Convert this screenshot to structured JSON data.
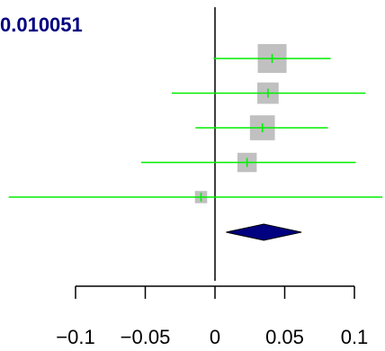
{
  "chart_data": {
    "type": "forest",
    "title": "0.010051",
    "xlabel": "",
    "ylabel": "",
    "xlim": [
      -0.14,
      0.12
    ],
    "ticks": [
      -0.1,
      -0.05,
      0,
      0.05,
      0.1
    ],
    "tick_labels": [
      "−0.1",
      "−0.05",
      "0",
      "0.05",
      "0.1"
    ],
    "reference_line": 0,
    "studies": [
      {
        "estimate": 0.041,
        "ci": [
          -0.001,
          0.083
        ],
        "weight": 1.0
      },
      {
        "estimate": 0.038,
        "ci": [
          -0.031,
          0.108
        ],
        "weight": 0.55
      },
      {
        "estimate": 0.034,
        "ci": [
          -0.014,
          0.081
        ],
        "weight": 0.75
      },
      {
        "estimate": 0.023,
        "ci": [
          -0.053,
          0.101
        ],
        "weight": 0.45
      },
      {
        "estimate": -0.01,
        "ci": [
          -0.148,
          0.12
        ],
        "weight": 0.18
      }
    ],
    "summary": {
      "estimate": 0.035,
      "ci": [
        0.008,
        0.062
      ]
    },
    "colors": {
      "ci_line": "#00ee00",
      "box": "#c0c0c0",
      "diamond_fill": "#000080",
      "diamond_stroke": "#000000",
      "axis": "#000000",
      "title": "#000080"
    }
  }
}
